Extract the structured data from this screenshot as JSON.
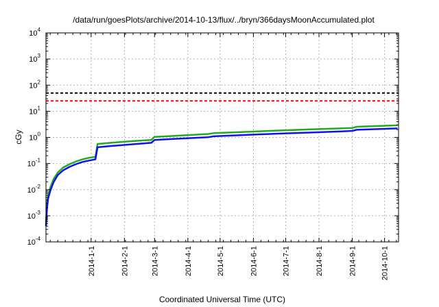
{
  "chart_data": {
    "type": "line",
    "title": "/data/run/goesPlots/archive/2014-10-13/flux/../bryn/366daysMoonAccumulated.plot",
    "xlabel": "Coordinated Universal Time (UTC)",
    "ylabel": "cGy",
    "yscale": "log",
    "ylim": [
      0.0001,
      10000
    ],
    "xlim": [
      "2013-11-20",
      "2014-10-14"
    ],
    "grid": true,
    "y_ticks": [
      {
        "base": "10",
        "exp": "-4",
        "value": 0.0001
      },
      {
        "base": "10",
        "exp": "-3",
        "value": 0.001
      },
      {
        "base": "10",
        "exp": "-2",
        "value": 0.01
      },
      {
        "base": "10",
        "exp": "-1",
        "value": 0.1
      },
      {
        "base": "10",
        "exp": "0",
        "value": 1
      },
      {
        "base": "10",
        "exp": "1",
        "value": 10
      },
      {
        "base": "10",
        "exp": "2",
        "value": 100
      },
      {
        "base": "10",
        "exp": "3",
        "value": 1000
      },
      {
        "base": "10",
        "exp": "4",
        "value": 10000
      }
    ],
    "x_ticks": [
      {
        "label": "2014-1-1",
        "date": "2014-01-01"
      },
      {
        "label": "2014-2-1",
        "date": "2014-02-01"
      },
      {
        "label": "2014-3-1",
        "date": "2014-03-01"
      },
      {
        "label": "2014-4-1",
        "date": "2014-04-01"
      },
      {
        "label": "2014-5-1",
        "date": "2014-05-01"
      },
      {
        "label": "2014-6-1",
        "date": "2014-06-01"
      },
      {
        "label": "2014-7-1",
        "date": "2014-07-01"
      },
      {
        "label": "2014-8-1",
        "date": "2014-08-01"
      },
      {
        "label": "2014-9-1",
        "date": "2014-09-01"
      },
      {
        "label": "2014-10-1",
        "date": "2014-10-01"
      }
    ],
    "thresholds": [
      {
        "value": 50,
        "color": "#000000",
        "style": "dashed"
      },
      {
        "value": 25,
        "color": "#ff0000",
        "style": "dashed"
      }
    ],
    "series": [
      {
        "color": "#22aa22",
        "x": [
          "2013-11-20",
          "2013-11-21",
          "2013-11-22",
          "2013-11-24",
          "2013-11-27",
          "2013-12-01",
          "2013-12-06",
          "2013-12-12",
          "2013-12-18",
          "2013-12-24",
          "2013-12-30",
          "2014-01-05",
          "2014-01-07",
          "2014-01-20",
          "2014-02-10",
          "2014-02-26",
          "2014-03-01",
          "2014-03-20",
          "2014-04-20",
          "2014-04-25",
          "2014-05-20",
          "2014-06-20",
          "2014-07-20",
          "2014-08-20",
          "2014-09-01",
          "2014-09-05",
          "2014-09-15",
          "2014-10-13"
        ],
        "y": [
          0.0006,
          0.003,
          0.006,
          0.012,
          0.025,
          0.045,
          0.07,
          0.095,
          0.12,
          0.145,
          0.165,
          0.18,
          0.56,
          0.63,
          0.73,
          0.8,
          1.05,
          1.15,
          1.35,
          1.45,
          1.6,
          1.8,
          2.0,
          2.2,
          2.3,
          2.55,
          2.65,
          2.9
        ]
      },
      {
        "color": "#1111ee",
        "x": [
          "2013-11-20",
          "2013-11-21",
          "2013-11-22",
          "2013-11-24",
          "2013-11-27",
          "2013-12-01",
          "2013-12-06",
          "2013-12-12",
          "2013-12-18",
          "2013-12-24",
          "2013-12-30",
          "2014-01-05",
          "2014-01-07",
          "2014-01-20",
          "2014-02-10",
          "2014-02-26",
          "2014-03-01",
          "2014-03-20",
          "2014-04-20",
          "2014-04-25",
          "2014-05-20",
          "2014-06-20",
          "2014-07-20",
          "2014-08-20",
          "2014-09-01",
          "2014-09-05",
          "2014-09-15",
          "2014-10-13"
        ],
        "y": [
          0.0004,
          0.002,
          0.0045,
          0.009,
          0.019,
          0.036,
          0.055,
          0.075,
          0.095,
          0.115,
          0.13,
          0.145,
          0.42,
          0.47,
          0.55,
          0.62,
          0.8,
          0.88,
          1.02,
          1.1,
          1.22,
          1.38,
          1.52,
          1.68,
          1.78,
          1.95,
          2.02,
          2.2
        ]
      }
    ]
  }
}
